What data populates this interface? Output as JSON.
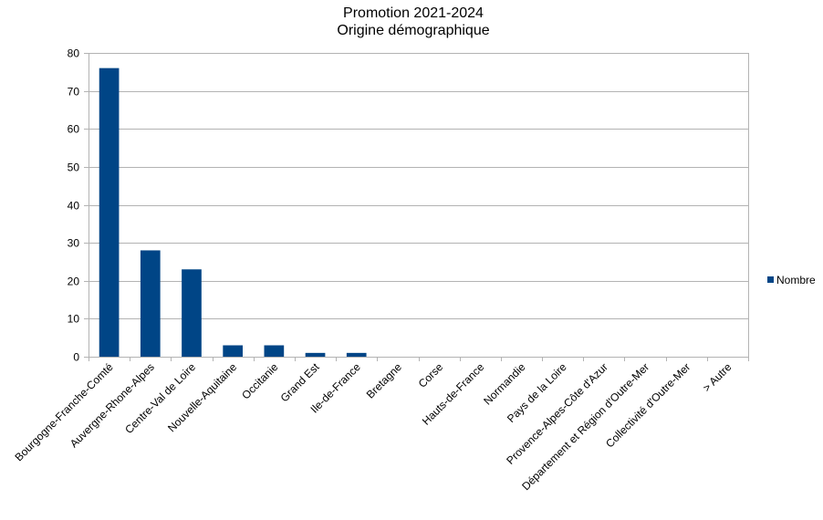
{
  "chart_data": {
    "type": "bar",
    "title": "Promotion 2021-2024",
    "subtitle": "Origine démographique",
    "categories": [
      "Bourgogne-Franche-Comté",
      "Auvergne-Rhone-Alpes",
      "Centre-Val de Loire",
      "Nouvelle-Aquitaine",
      "Occitanie",
      "Grand Est",
      "Ile-de-France",
      "Bretagne",
      "Corse",
      "Hauts-de-France",
      "Normandie",
      "Pays de la Loire",
      "Provence-Alpes-Côte d'Azur",
      "Département et Région d'Outre-Mer",
      "Collectivité d'Outre-Mer",
      "> Autre"
    ],
    "series": [
      {
        "name": "Nombre",
        "values": [
          76,
          28,
          23,
          3,
          3,
          1,
          1,
          0,
          0,
          0,
          0,
          0,
          0,
          0,
          0,
          0
        ],
        "color": "#004586"
      }
    ],
    "ylim": [
      0,
      80
    ],
    "yticks": [
      "0",
      "10",
      "20",
      "30",
      "40",
      "50",
      "60",
      "70",
      "80"
    ],
    "grid": true,
    "legend": "right"
  }
}
